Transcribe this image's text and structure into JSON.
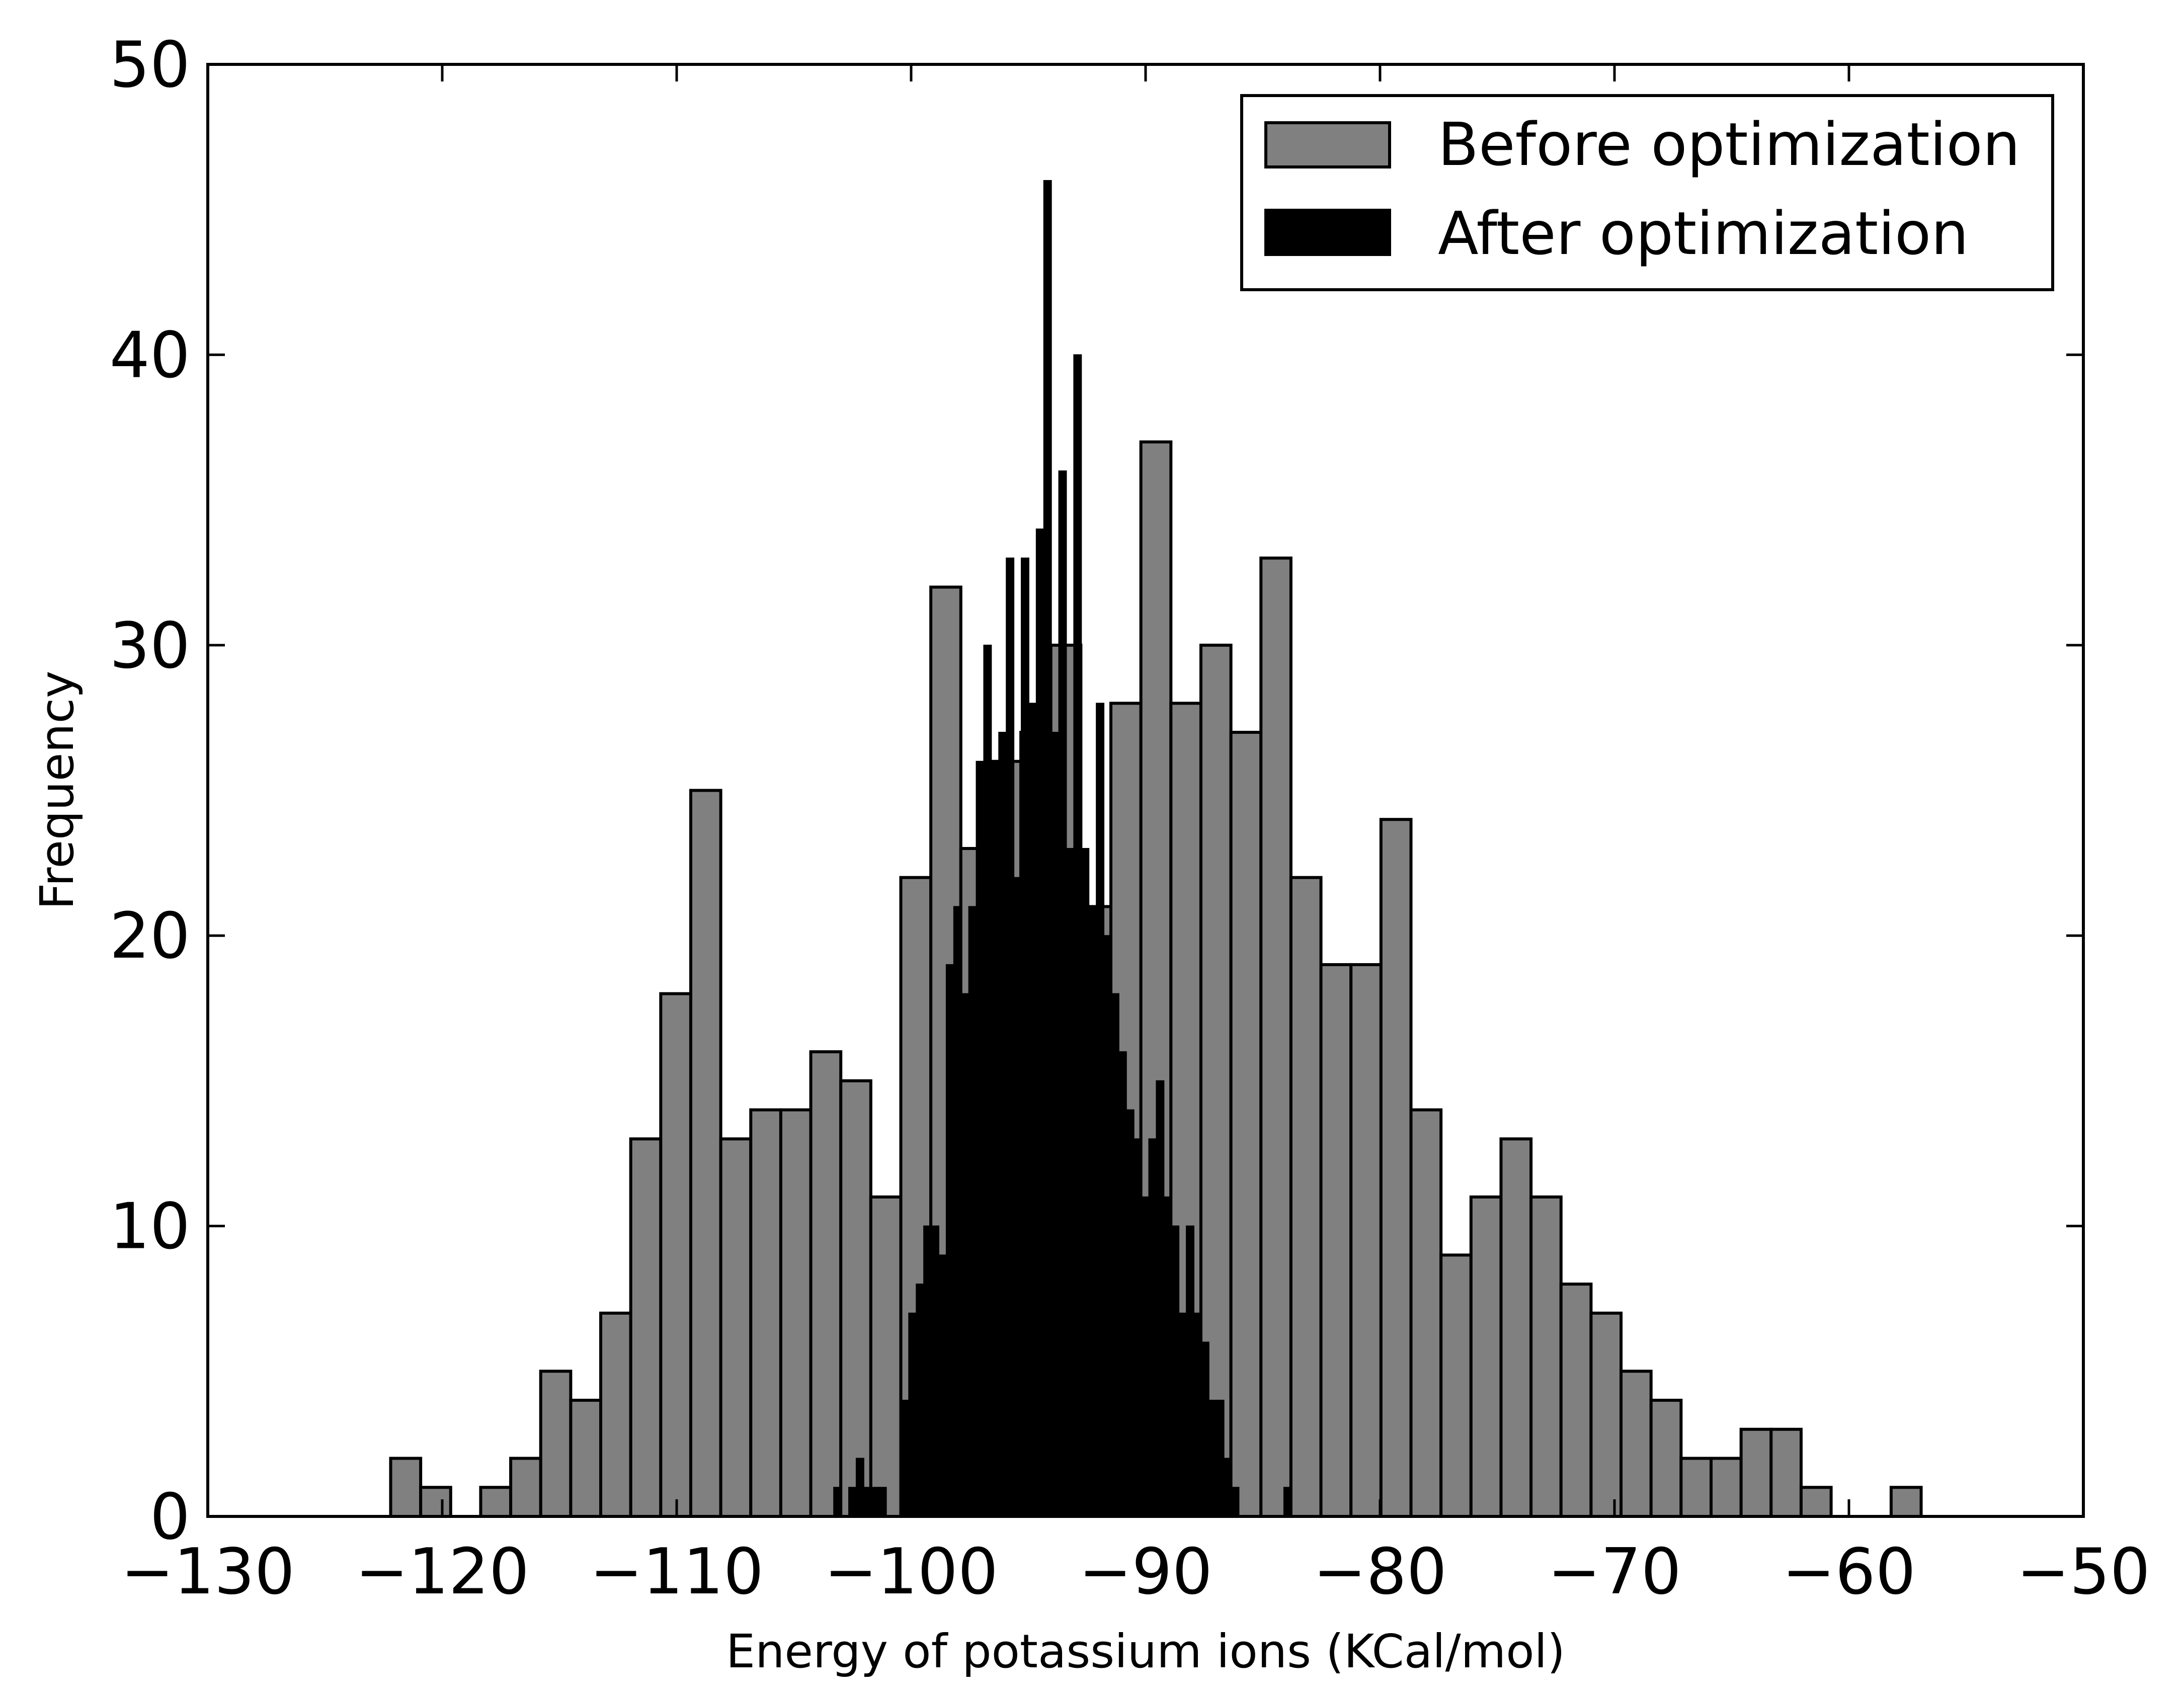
{
  "chart_data": {
    "type": "bar",
    "title": "",
    "xlabel": "Energy of potassium ions (KCal/mol)",
    "ylabel": "Frequency",
    "xlim": [
      -130,
      -50
    ],
    "ylim": [
      0,
      50
    ],
    "xticks": [
      -130,
      -120,
      -110,
      -100,
      -90,
      -80,
      -70,
      -60,
      -50
    ],
    "yticks": [
      0,
      10,
      20,
      30,
      40,
      50
    ],
    "xtick_labels": [
      "−130",
      "−120",
      "−110",
      "−100",
      "−90",
      "−80",
      "−70",
      "−60",
      "−50"
    ],
    "ytick_labels": [
      "0",
      "10",
      "20",
      "30",
      "40",
      "50"
    ],
    "grid": false,
    "legend": {
      "position": "top-right",
      "entries": [
        "Before optimization",
        "After optimization"
      ]
    },
    "series": [
      {
        "name": "Before optimization",
        "color": "#808080",
        "bin_width": 1.28,
        "bins": [
          {
            "x": -122.2,
            "y": 2
          },
          {
            "x": -120.92,
            "y": 1
          },
          {
            "x": -119.64,
            "y": 0
          },
          {
            "x": -118.36,
            "y": 1
          },
          {
            "x": -117.08,
            "y": 2
          },
          {
            "x": -115.8,
            "y": 5
          },
          {
            "x": -114.52,
            "y": 4
          },
          {
            "x": -113.24,
            "y": 7
          },
          {
            "x": -111.96,
            "y": 13
          },
          {
            "x": -110.68,
            "y": 18
          },
          {
            "x": -109.4,
            "y": 25
          },
          {
            "x": -108.12,
            "y": 13
          },
          {
            "x": -106.84,
            "y": 14
          },
          {
            "x": -105.56,
            "y": 14
          },
          {
            "x": -104.28,
            "y": 16
          },
          {
            "x": -103.0,
            "y": 15
          },
          {
            "x": -101.72,
            "y": 11
          },
          {
            "x": -100.44,
            "y": 22
          },
          {
            "x": -99.16,
            "y": 32
          },
          {
            "x": -97.88,
            "y": 23
          },
          {
            "x": -96.6,
            "y": 26
          },
          {
            "x": -95.32,
            "y": 27
          },
          {
            "x": -94.04,
            "y": 30
          },
          {
            "x": -92.76,
            "y": 21
          },
          {
            "x": -91.48,
            "y": 28
          },
          {
            "x": -90.2,
            "y": 37
          },
          {
            "x": -88.92,
            "y": 28
          },
          {
            "x": -87.64,
            "y": 30
          },
          {
            "x": -86.36,
            "y": 27
          },
          {
            "x": -85.08,
            "y": 33
          },
          {
            "x": -83.8,
            "y": 22
          },
          {
            "x": -82.52,
            "y": 19
          },
          {
            "x": -81.24,
            "y": 19
          },
          {
            "x": -79.96,
            "y": 24
          },
          {
            "x": -78.68,
            "y": 14
          },
          {
            "x": -77.4,
            "y": 9
          },
          {
            "x": -76.12,
            "y": 11
          },
          {
            "x": -74.84,
            "y": 13
          },
          {
            "x": -73.56,
            "y": 11
          },
          {
            "x": -72.28,
            "y": 8
          },
          {
            "x": -71.0,
            "y": 7
          },
          {
            "x": -69.72,
            "y": 5
          },
          {
            "x": -68.44,
            "y": 4
          },
          {
            "x": -67.16,
            "y": 2
          },
          {
            "x": -65.88,
            "y": 2
          },
          {
            "x": -64.6,
            "y": 3
          },
          {
            "x": -63.32,
            "y": 3
          },
          {
            "x": -62.04,
            "y": 1
          },
          {
            "x": -60.76,
            "y": 0
          },
          {
            "x": -59.48,
            "y": 0
          },
          {
            "x": -58.2,
            "y": 1
          }
        ]
      },
      {
        "name": "After optimization",
        "color": "#000000",
        "bin_width": 0.32,
        "bins": [
          {
            "x": -103.3,
            "y": 1
          },
          {
            "x": -102.98,
            "y": 0
          },
          {
            "x": -102.66,
            "y": 1
          },
          {
            "x": -102.34,
            "y": 2
          },
          {
            "x": -102.02,
            "y": 1
          },
          {
            "x": -101.7,
            "y": 1
          },
          {
            "x": -101.38,
            "y": 1
          },
          {
            "x": -101.06,
            "y": 0
          },
          {
            "x": -100.74,
            "y": 0
          },
          {
            "x": -100.42,
            "y": 4
          },
          {
            "x": -100.1,
            "y": 7
          },
          {
            "x": -99.78,
            "y": 8
          },
          {
            "x": -99.46,
            "y": 10
          },
          {
            "x": -99.14,
            "y": 10
          },
          {
            "x": -98.82,
            "y": 9
          },
          {
            "x": -98.5,
            "y": 19
          },
          {
            "x": -98.18,
            "y": 21
          },
          {
            "x": -97.86,
            "y": 18
          },
          {
            "x": -97.54,
            "y": 21
          },
          {
            "x": -97.22,
            "y": 26
          },
          {
            "x": -96.9,
            "y": 30
          },
          {
            "x": -96.58,
            "y": 26
          },
          {
            "x": -96.26,
            "y": 27
          },
          {
            "x": -95.94,
            "y": 33
          },
          {
            "x": -95.62,
            "y": 22
          },
          {
            "x": -95.3,
            "y": 33
          },
          {
            "x": -94.98,
            "y": 28
          },
          {
            "x": -94.66,
            "y": 34
          },
          {
            "x": -94.34,
            "y": 46
          },
          {
            "x": -94.02,
            "y": 27
          },
          {
            "x": -93.7,
            "y": 36
          },
          {
            "x": -93.38,
            "y": 23
          },
          {
            "x": -93.06,
            "y": 40
          },
          {
            "x": -92.74,
            "y": 23
          },
          {
            "x": -92.42,
            "y": 21
          },
          {
            "x": -92.1,
            "y": 28
          },
          {
            "x": -91.78,
            "y": 20
          },
          {
            "x": -91.46,
            "y": 18
          },
          {
            "x": -91.14,
            "y": 16
          },
          {
            "x": -90.82,
            "y": 14
          },
          {
            "x": -90.5,
            "y": 13
          },
          {
            "x": -90.18,
            "y": 11
          },
          {
            "x": -89.86,
            "y": 13
          },
          {
            "x": -89.54,
            "y": 15
          },
          {
            "x": -89.22,
            "y": 11
          },
          {
            "x": -88.9,
            "y": 10
          },
          {
            "x": -88.58,
            "y": 7
          },
          {
            "x": -88.26,
            "y": 10
          },
          {
            "x": -87.94,
            "y": 7
          },
          {
            "x": -87.62,
            "y": 6
          },
          {
            "x": -87.3,
            "y": 4
          },
          {
            "x": -86.98,
            "y": 4
          },
          {
            "x": -86.66,
            "y": 2
          },
          {
            "x": -86.34,
            "y": 1
          },
          {
            "x": -86.02,
            "y": 0
          },
          {
            "x": -85.7,
            "y": 0
          },
          {
            "x": -85.38,
            "y": 0
          },
          {
            "x": -85.06,
            "y": 0
          },
          {
            "x": -84.74,
            "y": 0
          },
          {
            "x": -84.42,
            "y": 0
          },
          {
            "x": -84.1,
            "y": 1
          }
        ]
      }
    ]
  }
}
